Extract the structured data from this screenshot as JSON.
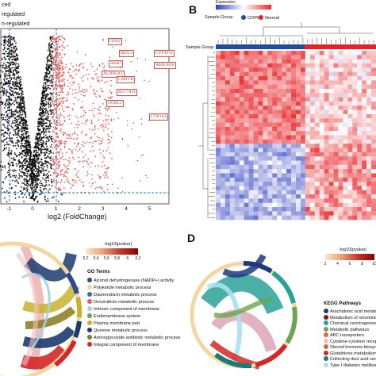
{
  "panel_a": {
    "legend_lines": [
      "ced",
      "regulated",
      "n-regulated"
    ],
    "xlabel": "log2 (FoldChange)",
    "xticks": [
      "-1",
      "0",
      "1",
      "2",
      "3",
      "4",
      "5"
    ],
    "genes": [
      "GPX2",
      "MUC1",
      "CYP4F11",
      "AKR1B10",
      "AKR7",
      "ALDH3A1",
      "CABYR",
      "SLC7A11",
      "UCHL1",
      "CYP1A1"
    ],
    "colors": {
      "up": "#e8605a",
      "nonsig": "#111111",
      "threshold": "#2b7bb9"
    }
  },
  "panel_b": {
    "letter": "B",
    "expression_label": "Expression",
    "sample_group_label": "Sample Group",
    "group_key_title": "Sample Group",
    "groups": [
      {
        "name": "COPD",
        "color": "#1f4e9c"
      },
      {
        "name": "Normal",
        "color": "#e0242b"
      }
    ],
    "colors": {
      "low": "#2e3fbf",
      "mid": "#ffffff",
      "high": "#e8282b"
    }
  },
  "panel_c": {
    "scale_title": "-log10(pvalue)",
    "scale_ticks": [
      "5.2",
      "5.4",
      "5.6",
      "5.8",
      "6",
      "6.2"
    ],
    "terms_title": "GO Terms",
    "terms": [
      {
        "name": "Alcohol dehydrogenase (NADP+) activity",
        "color": "#2a4b8d"
      },
      {
        "name": "Polyketide metabolic process",
        "color": "#f2d7a0"
      },
      {
        "name": "Daunorubicin metabolic process",
        "color": "#3a6f9a"
      },
      {
        "name": "Doxorubicin metabolic process",
        "color": "#e85d5d"
      },
      {
        "name": "Intrinsic component of membrane",
        "color": "#9fd3e8"
      },
      {
        "name": "Endomembrane system",
        "color": "#6aa84f"
      },
      {
        "name": "Plasma membrane part",
        "color": "#c9b12c"
      },
      {
        "name": "Quinone metabolic process",
        "color": "#1d3a6e"
      },
      {
        "name": "Aminoglycoside antibiotic metabolic process",
        "color": "#8a7a1a"
      },
      {
        "name": "Integral component of membrane",
        "color": "#d62728"
      }
    ]
  },
  "panel_d": {
    "letter": "D",
    "scale_title": "-log10(pvalue)",
    "scale_ticks": [
      "2",
      "4",
      "6",
      "8",
      "10"
    ],
    "pathways_title": "KEGG Pathways",
    "pathways": [
      {
        "name": "Arachidonic acid metabolism",
        "color": "#1f3a7a"
      },
      {
        "name": "Metabolism of xenobiotics",
        "color": "#7a1a1a"
      },
      {
        "name": "Chemical carcinogenesis",
        "color": "#2aa198"
      },
      {
        "name": "Metabolic pathways",
        "color": "#6aa84f"
      },
      {
        "name": "ABC transporters",
        "color": "#e8605a"
      },
      {
        "name": "Cytokine-cytokine recep...",
        "color": "#f2c0c0"
      },
      {
        "name": "Steroid hormone biosynt...",
        "color": "#c07050"
      },
      {
        "name": "Glutathione metabolism",
        "color": "#d62728"
      },
      {
        "name": "Collecting duct acid secr...",
        "color": "#1a7a7a"
      },
      {
        "name": "Type I diabetes mellitus",
        "color": "#a8e0f0"
      }
    ]
  }
}
